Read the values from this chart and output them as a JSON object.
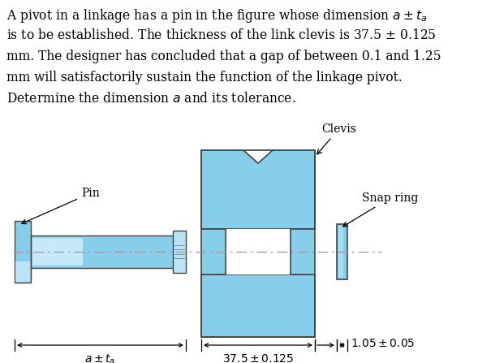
{
  "bg": "#ffffff",
  "light_blue": "#87CEEB",
  "light_blue2": "#b8e4f5",
  "outline": "#444444",
  "text_lines": [
    [
      "A pivot in a linkage has a pin in the figure whose dimension ",
      "$a \\pm t_a$"
    ],
    [
      "is to be established. The thickness of the link clevis is 37.5 ± 0.125"
    ],
    [
      "mm. The designer has concluded that a gap of between 0.1 and 1.25"
    ],
    [
      "mm will satisfactorily sustain the function of the linkage pivot."
    ],
    [
      "Determine the dimension ",
      "$a$",
      " and its tolerance."
    ]
  ],
  "label_pin": "Pin",
  "label_clevis": "Clevis",
  "label_snap": "Snap ring",
  "dim_a": "$a \\pm t_a$",
  "dim_clevis": "$37.5\\pm0.125$",
  "dim_snap": "$1.05\\pm0.05$"
}
